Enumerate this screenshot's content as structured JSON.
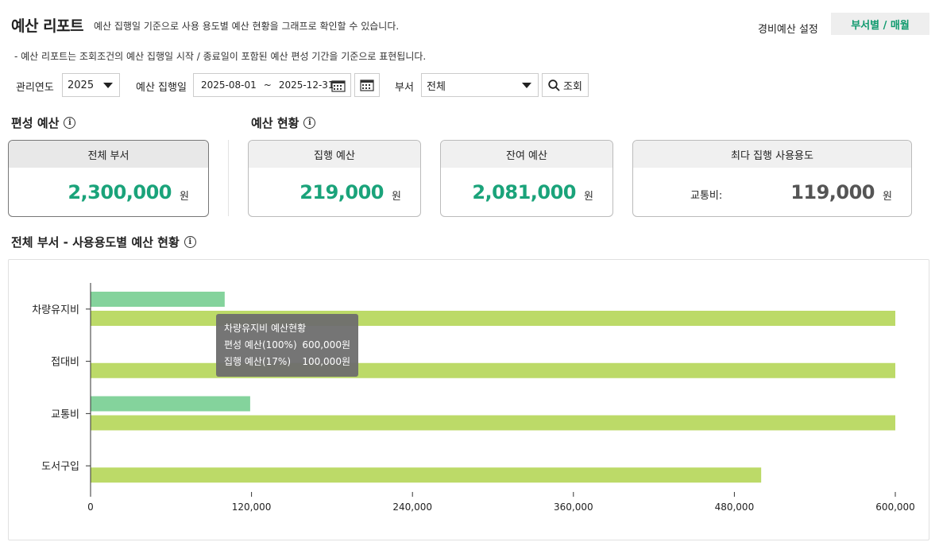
{
  "header": {
    "title": "예산 리포트",
    "description": "예산 집행일 기준으로 사용 용도별 예산 현황을 그래프로 확인할 수 있습니다.",
    "settings_link": "경비예산 설정",
    "view_tab": "부서별 / 매월",
    "notice": "- 예산 리포트는 조회조건의 예산 집행일 시작 / 종료일이 포함된 예산 편성 기간을 기준으로 표현됩니다."
  },
  "filters": {
    "year_label": "관리연도",
    "year_value": "2025",
    "date_label": "예산 집행일",
    "date_start": "2025-08-01",
    "date_sep": "~",
    "date_end": "2025-12-31",
    "dept_label": "부서",
    "dept_value": "전체",
    "search_label": "조회"
  },
  "summary": {
    "budget_section_title": "편성 예산",
    "status_section_title": "예산 현황",
    "unit": "원",
    "all_dept": {
      "label": "전체 부서",
      "amount": "2,300,000"
    },
    "executed": {
      "label": "집행 예산",
      "amount": "219,000"
    },
    "remaining": {
      "label": "잔여 예산",
      "amount": "2,081,000"
    },
    "top_usage": {
      "label": "최다 집행 사용용도",
      "item": "교통비:",
      "amount": "119,000"
    }
  },
  "chart_section": {
    "title": "전체 부서 - 사용용도별 예산 현황"
  },
  "chart_data": {
    "type": "bar",
    "orientation": "horizontal",
    "categories": [
      "차량유지비",
      "접대비",
      "교통비",
      "도서구입"
    ],
    "series": [
      {
        "values": [
          100000,
          0,
          119000,
          0
        ],
        "color": "#84d39c"
      },
      {
        "values": [
          600000,
          600000,
          600000,
          500000
        ],
        "color": "#bcda68"
      }
    ],
    "xlim": [
      0,
      600000
    ],
    "x_ticks": [
      "0",
      "120,000",
      "240,000",
      "360,000",
      "480,000",
      "600,000"
    ],
    "x_tick_values": [
      0,
      120000,
      240000,
      360000,
      480000,
      600000
    ],
    "grid": false
  },
  "tooltip": {
    "title": "차량유지비 예산현황",
    "row1_label": "편성 예산(100%)",
    "row1_value": "600,000원",
    "row2_label": "집행 예산(17%)",
    "row2_value": "100,000원"
  },
  "colors": {
    "accent_green": "#1aa37a",
    "executed_bar": "#84d39c",
    "budget_bar": "#bcda68"
  }
}
